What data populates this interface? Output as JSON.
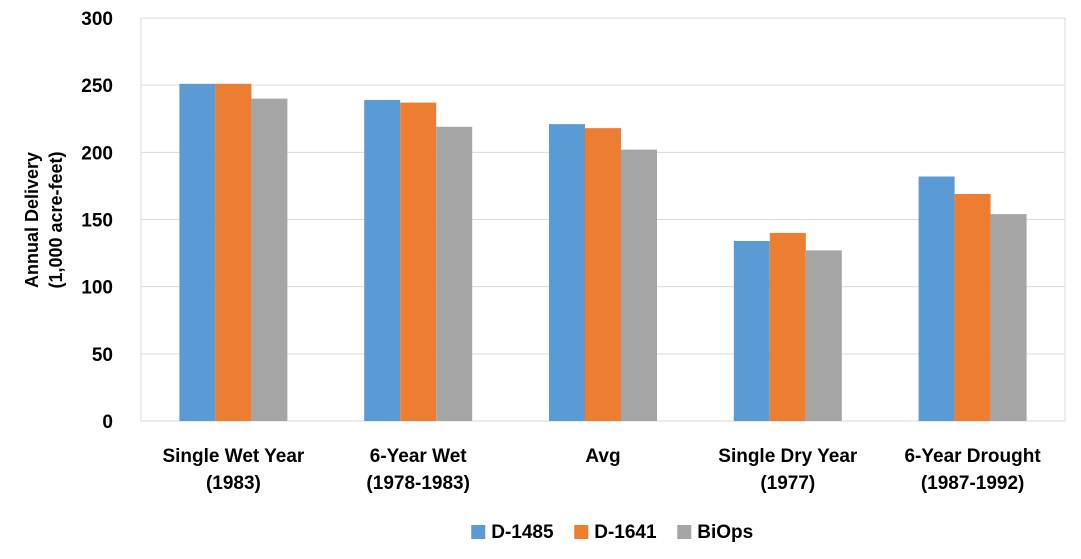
{
  "chart_data": {
    "type": "bar",
    "title": "",
    "xlabel": "",
    "ylabel": [
      "Annual Delivery",
      "(1,000 acre-feet)"
    ],
    "ylim": [
      0,
      300
    ],
    "yticks": [
      0,
      50,
      100,
      150,
      200,
      250,
      300
    ],
    "grid": true,
    "legend_position": "bottom",
    "categories": [
      [
        "Single Wet Year",
        "(1983)"
      ],
      [
        "6-Year Wet",
        "(1978-1983)"
      ],
      [
        "Avg"
      ],
      [
        "Single Dry Year",
        "(1977)"
      ],
      [
        "6-Year Drought",
        "(1987-1992)"
      ]
    ],
    "series": [
      {
        "name": "D-1485",
        "color": "#5B9BD5",
        "values": [
          251,
          239,
          221,
          134,
          182
        ]
      },
      {
        "name": "D-1641",
        "color": "#ED7D31",
        "values": [
          251,
          237,
          218,
          140,
          169
        ]
      },
      {
        "name": "BiOps",
        "color": "#A5A5A5",
        "values": [
          240,
          219,
          202,
          127,
          154
        ]
      }
    ]
  }
}
